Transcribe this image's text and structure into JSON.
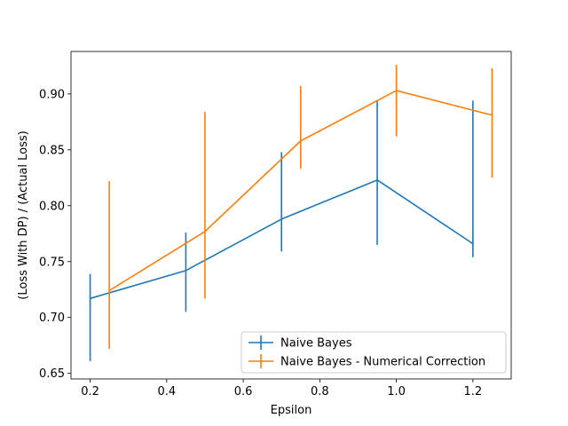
{
  "chart_data": {
    "type": "line",
    "title": "",
    "xlabel": "Epsilon",
    "ylabel": "(Loss With DP) / (Actual Loss)",
    "xlim": [
      0.15,
      1.3
    ],
    "ylim": [
      0.645,
      0.938
    ],
    "xticks": [
      0.2,
      0.4,
      0.6,
      0.8,
      1.0,
      1.2
    ],
    "xtick_labels": [
      "0.2",
      "0.4",
      "0.6",
      "0.8",
      "1.0",
      "1.2"
    ],
    "yticks": [
      0.65,
      0.7,
      0.75,
      0.8,
      0.85,
      0.9
    ],
    "ytick_labels": [
      "0.65",
      "0.70",
      "0.75",
      "0.80",
      "0.85",
      "0.90"
    ],
    "grid": false,
    "legend_position": "lower-right",
    "series": [
      {
        "name": "Naive Bayes",
        "color": "#1f77b4",
        "x": [
          0.2,
          0.45,
          0.7,
          0.95,
          1.2
        ],
        "y": [
          0.717,
          0.742,
          0.788,
          0.823,
          0.766
        ],
        "err_low": [
          0.661,
          0.705,
          0.759,
          0.765,
          0.754
        ],
        "err_high": [
          0.739,
          0.776,
          0.848,
          0.894,
          0.894
        ]
      },
      {
        "name": "Naive Bayes - Numerical Correction",
        "color": "#ff7f0e",
        "x": [
          0.25,
          0.5,
          0.75,
          1.0,
          1.25
        ],
        "y": [
          0.724,
          0.777,
          0.858,
          0.903,
          0.881
        ],
        "err_low": [
          0.672,
          0.717,
          0.833,
          0.862,
          0.825
        ],
        "err_high": [
          0.822,
          0.884,
          0.907,
          0.926,
          0.923
        ]
      }
    ]
  }
}
